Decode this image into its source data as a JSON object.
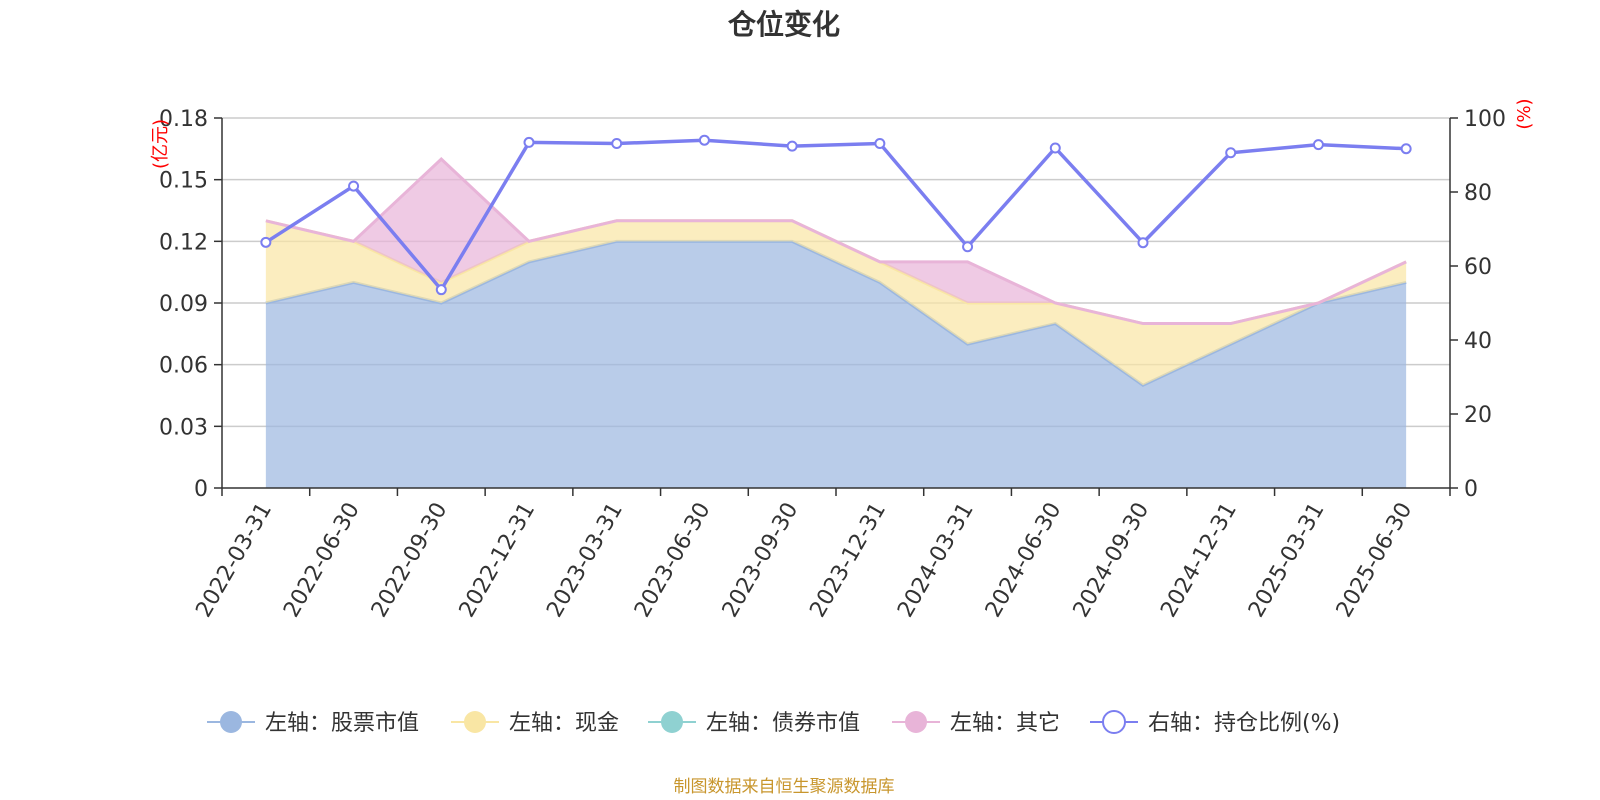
{
  "chart_data": {
    "type": "area",
    "title": "仓位变化",
    "categories": [
      "2022-03-31",
      "2022-06-30",
      "2022-09-30",
      "2022-12-31",
      "2023-03-31",
      "2023-06-30",
      "2023-09-30",
      "2023-12-31",
      "2024-03-31",
      "2024-06-30",
      "2024-09-30",
      "2024-12-31",
      "2025-03-31",
      "2025-06-30"
    ],
    "left_axis": {
      "unit": "(亿元)",
      "ylim": [
        0,
        0.18
      ],
      "ticks": [
        "0",
        "0.03",
        "0.06",
        "0.09",
        "0.12",
        "0.15",
        "0.18"
      ]
    },
    "right_axis": {
      "unit": "(%)",
      "ylim": [
        0,
        100
      ],
      "ticks": [
        "0",
        "20",
        "40",
        "60",
        "80",
        "100"
      ]
    },
    "stacked": true,
    "series": [
      {
        "name": "左轴：股票市值",
        "axis": "left",
        "type": "area",
        "color": "#9bb7e0",
        "values": [
          0.09,
          0.1,
          0.09,
          0.11,
          0.12,
          0.12,
          0.12,
          0.1,
          0.07,
          0.08,
          0.05,
          0.07,
          0.09,
          0.1
        ]
      },
      {
        "name": "左轴：现金",
        "axis": "left",
        "type": "area",
        "color": "#f9e6a4",
        "values": [
          0.04,
          0.02,
          0.01,
          0.01,
          0.01,
          0.01,
          0.01,
          0.01,
          0.02,
          0.01,
          0.03,
          0.01,
          0.0,
          0.01
        ]
      },
      {
        "name": "左轴：债券市值",
        "axis": "left",
        "type": "area",
        "color": "#8fd1d1",
        "values": [
          0,
          0,
          0,
          0,
          0,
          0,
          0,
          0,
          0,
          0,
          0,
          0,
          0,
          0
        ]
      },
      {
        "name": "左轴：其它",
        "axis": "left",
        "type": "area",
        "color": "#e8b4d8",
        "values": [
          0.0,
          0.0,
          0.06,
          0.0,
          0.0,
          0.0,
          0.0,
          0.0,
          0.02,
          0.0,
          0.0,
          0.0,
          0.0,
          0.0
        ]
      },
      {
        "name": "右轴：持仓比例(%)",
        "axis": "right",
        "type": "line",
        "color": "#7b7ef0",
        "values": [
          66.4,
          81.6,
          53.6,
          93.4,
          93.1,
          94.0,
          92.4,
          93.1,
          65.2,
          91.9,
          66.3,
          90.6,
          92.8,
          91.7
        ]
      }
    ],
    "grid": true,
    "legend_position": "bottom",
    "source": "制图数据来自恒生聚源数据库"
  }
}
